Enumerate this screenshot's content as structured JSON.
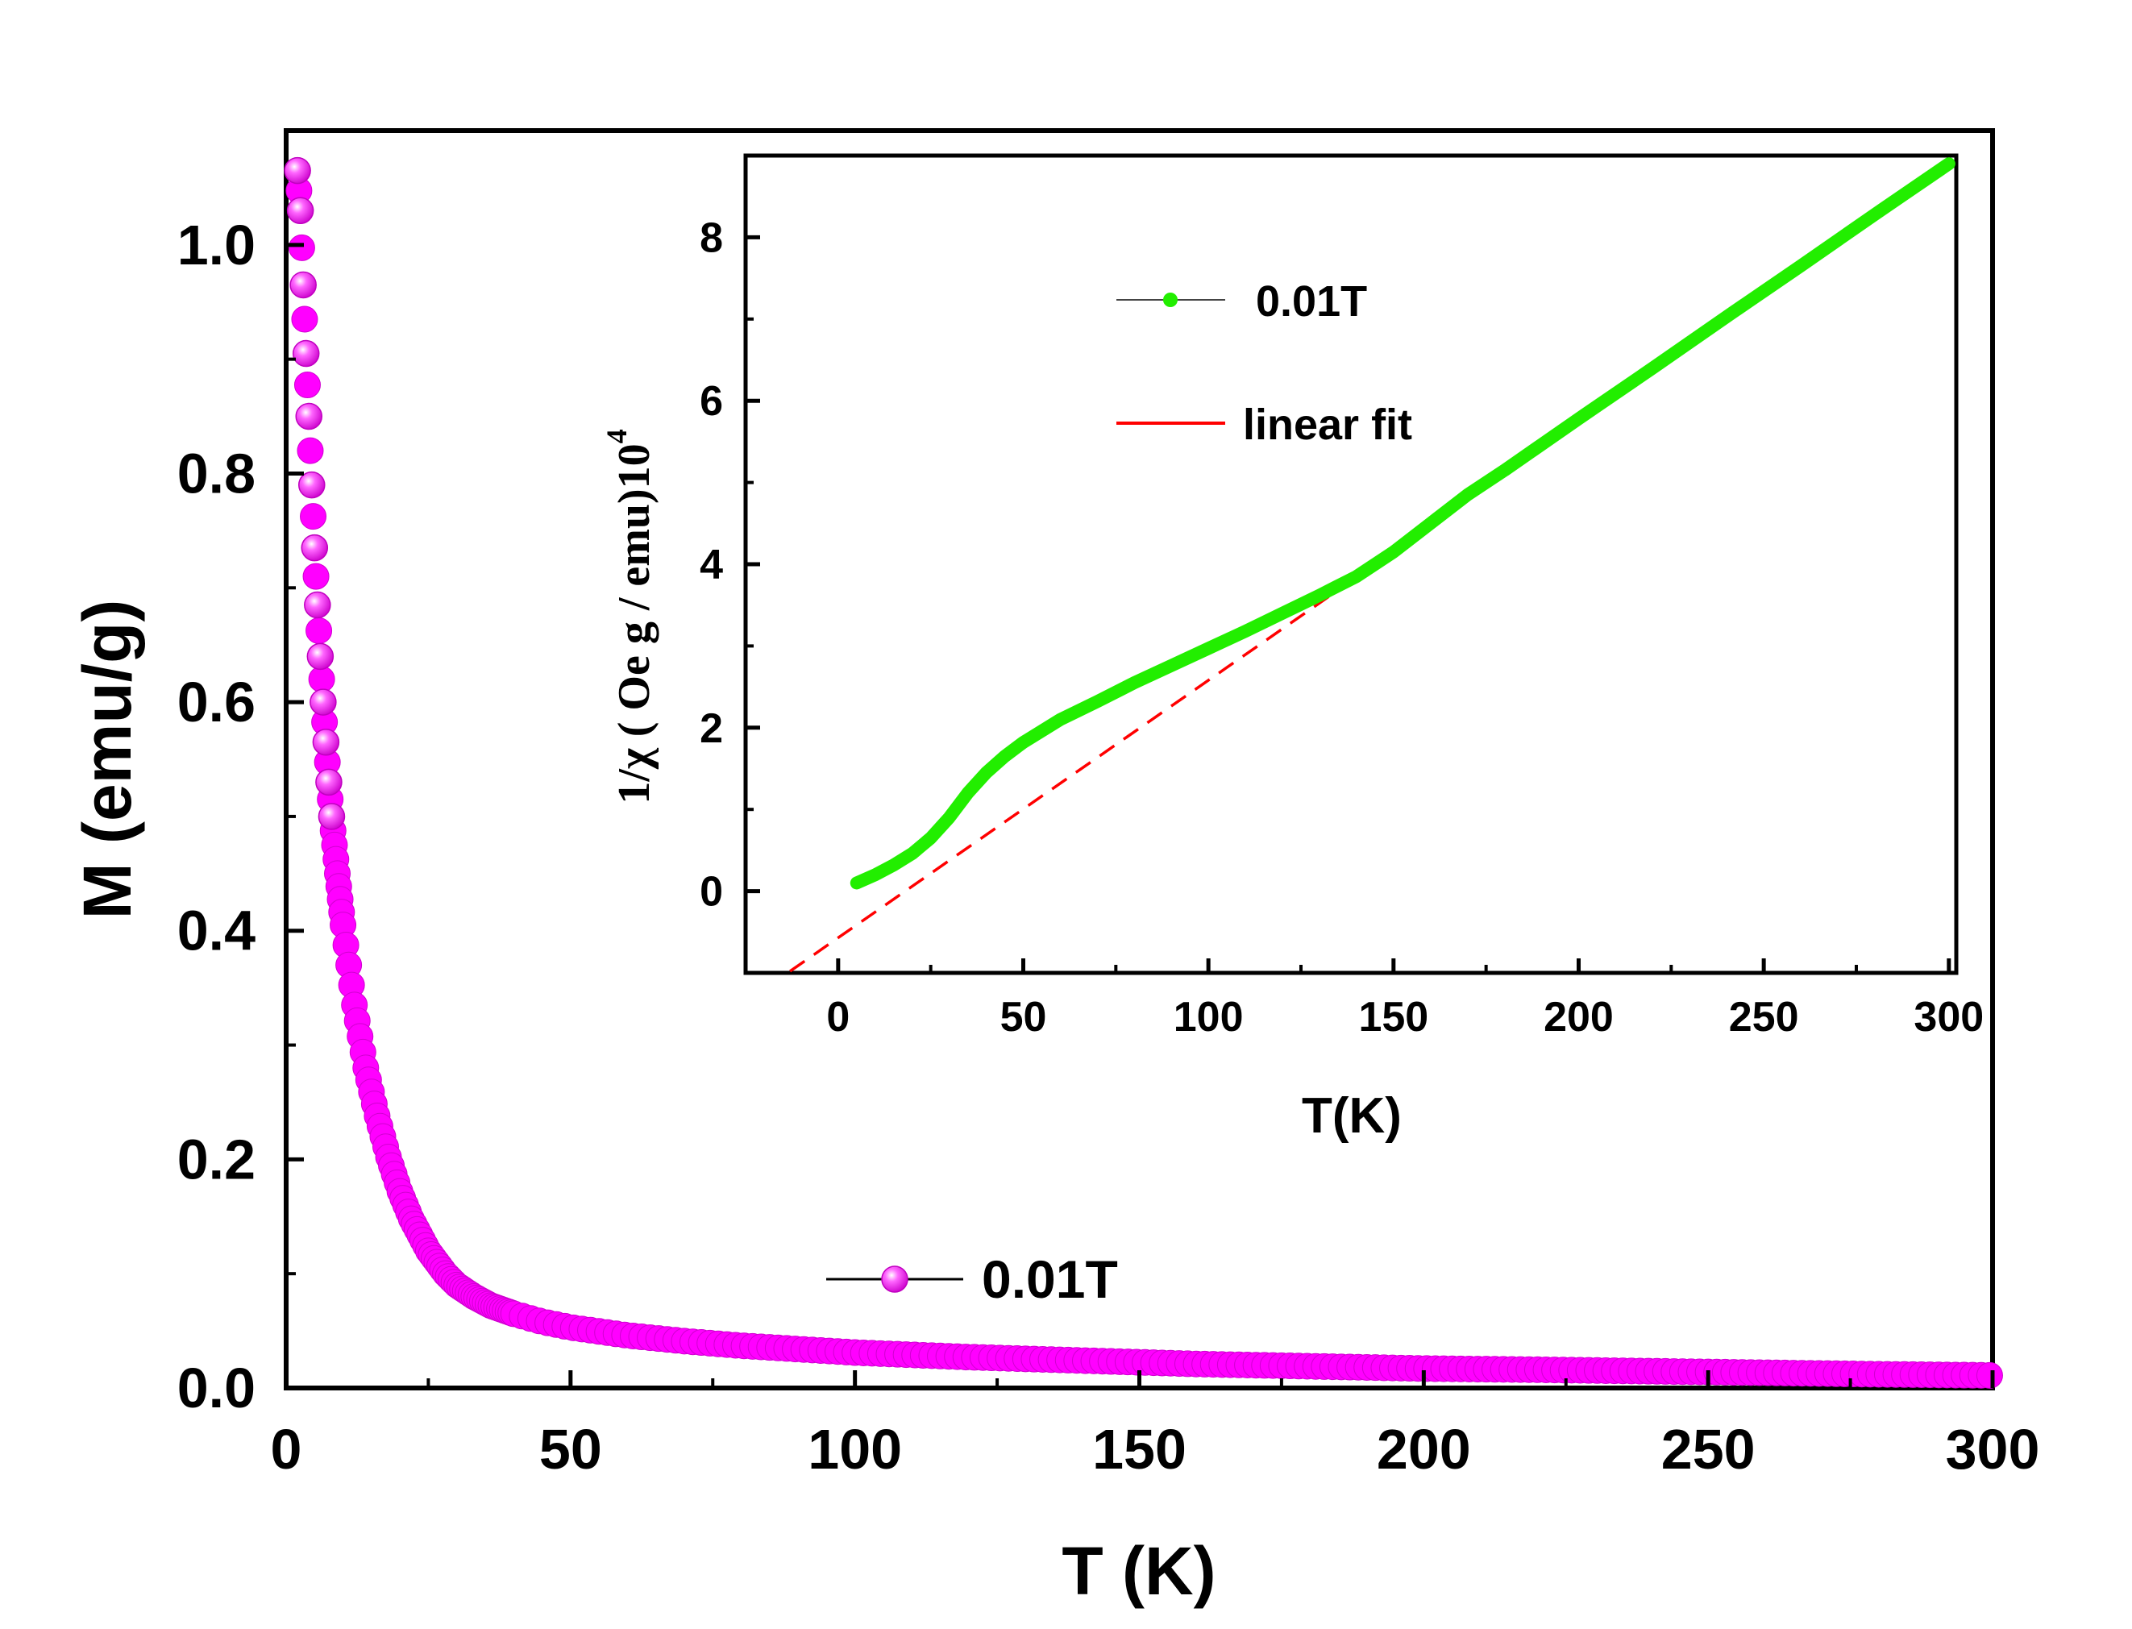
{
  "chart_data": [
    {
      "id": "main",
      "type": "scatter",
      "title": "",
      "xlabel": "T (K)",
      "ylabel": "M (emu/g)",
      "xlim": [
        0,
        300
      ],
      "ylim": [
        0.0,
        1.1
      ],
      "xticks": [
        0,
        50,
        100,
        150,
        200,
        250,
        300
      ],
      "xtick_labels": [
        "0",
        "50",
        "100",
        "150",
        "200",
        "250",
        "300"
      ],
      "yticks": [
        0.0,
        0.2,
        0.4,
        0.6,
        0.8,
        1.0
      ],
      "ytick_labels": [
        "0.0",
        "0.2",
        "0.4",
        "0.6",
        "0.8",
        "1.0"
      ],
      "legend_position": "bottom-center",
      "series": [
        {
          "name": "0.01T",
          "color": "#ff00ff",
          "marker": "sphere",
          "x": [
            2,
            2.5,
            3,
            3.5,
            4,
            4.5,
            5,
            5.5,
            6,
            6.5,
            7,
            7.5,
            8,
            9,
            10,
            12,
            14,
            16,
            18,
            20,
            22,
            25,
            28,
            30,
            33,
            36,
            40,
            45,
            50,
            60,
            70,
            80,
            90,
            100,
            120,
            140,
            160,
            180,
            200,
            220,
            250,
            280,
            300
          ],
          "values": [
            1.065,
            1.03,
            0.965,
            0.905,
            0.85,
            0.79,
            0.735,
            0.685,
            0.64,
            0.6,
            0.565,
            0.53,
            0.5,
            0.45,
            0.405,
            0.335,
            0.28,
            0.238,
            0.202,
            0.172,
            0.148,
            0.12,
            0.1,
            0.09,
            0.08,
            0.072,
            0.065,
            0.058,
            0.053,
            0.046,
            0.041,
            0.037,
            0.034,
            0.031,
            0.027,
            0.024,
            0.021,
            0.019,
            0.017,
            0.016,
            0.014,
            0.012,
            0.011
          ]
        }
      ]
    },
    {
      "id": "inset",
      "type": "line",
      "title": "",
      "xlabel": "T(K)",
      "ylabel": "1/χ ( Oe g / emu)10",
      "ylabel_exponent": "4",
      "xlim": [
        -25,
        302
      ],
      "ylim": [
        -1.0,
        9.0
      ],
      "xticks": [
        0,
        50,
        100,
        150,
        200,
        250,
        300
      ],
      "xtick_labels": [
        "0",
        "50",
        "100",
        "150",
        "200",
        "250",
        "300"
      ],
      "yticks": [
        0,
        2,
        4,
        6,
        8
      ],
      "ytick_labels": [
        "0",
        "2",
        "4",
        "6",
        "8"
      ],
      "legend_position": "top-left",
      "series": [
        {
          "name": "0.01T",
          "color": "#22ee00",
          "marker": "dot",
          "x": [
            5,
            10,
            15,
            20,
            25,
            30,
            35,
            40,
            45,
            50,
            60,
            70,
            80,
            90,
            100,
            110,
            120,
            130,
            140,
            150,
            160,
            170,
            180,
            200,
            220,
            240,
            260,
            280,
            300
          ],
          "values": [
            0.1,
            0.2,
            0.32,
            0.46,
            0.65,
            0.9,
            1.2,
            1.45,
            1.65,
            1.82,
            2.1,
            2.32,
            2.55,
            2.76,
            2.97,
            3.18,
            3.4,
            3.62,
            3.85,
            4.15,
            4.5,
            4.85,
            5.15,
            5.78,
            6.4,
            7.03,
            7.65,
            8.28,
            8.9
          ]
        },
        {
          "name": "linear fit",
          "color": "#ff0000",
          "dashed": true,
          "x": [
            -13,
            300
          ],
          "values": [
            -0.98,
            8.88
          ]
        }
      ]
    }
  ]
}
